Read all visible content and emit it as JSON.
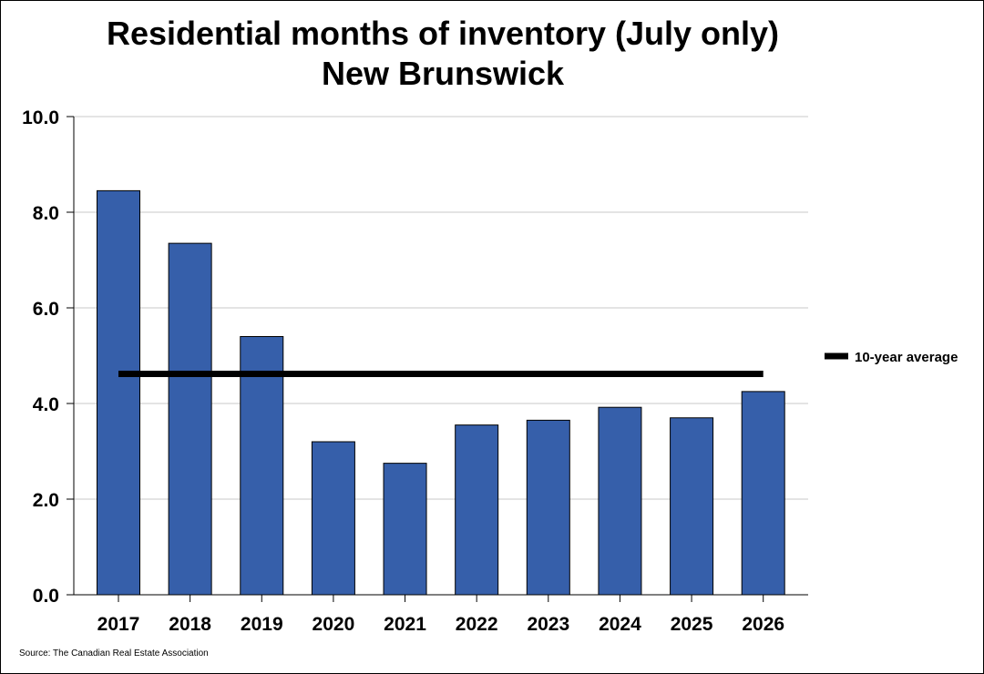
{
  "chart_data": {
    "type": "bar",
    "title": "Residential months of inventory (July only)",
    "subtitle": "New Brunswick",
    "categories": [
      "2017",
      "2018",
      "2019",
      "2020",
      "2021",
      "2022",
      "2023",
      "2024",
      "2025",
      "2026"
    ],
    "series": [
      {
        "values": [
          8.45,
          7.35,
          5.4,
          3.2,
          2.75,
          3.55,
          3.65,
          3.92,
          3.7,
          4.25
        ],
        "color": "#365FAA"
      }
    ],
    "reference_line": {
      "name": "10-year average",
      "value": 4.62,
      "color": "#000000"
    },
    "ylim": [
      0,
      10
    ],
    "yticks": [
      0,
      2,
      4,
      6,
      8,
      10
    ],
    "ytick_labels": [
      "0.0",
      "2.0",
      "4.0",
      "6.0",
      "8.0",
      "10.0"
    ],
    "grid": true,
    "legend_position": "right",
    "source": "Source: The Canadian Real Estate Association"
  }
}
